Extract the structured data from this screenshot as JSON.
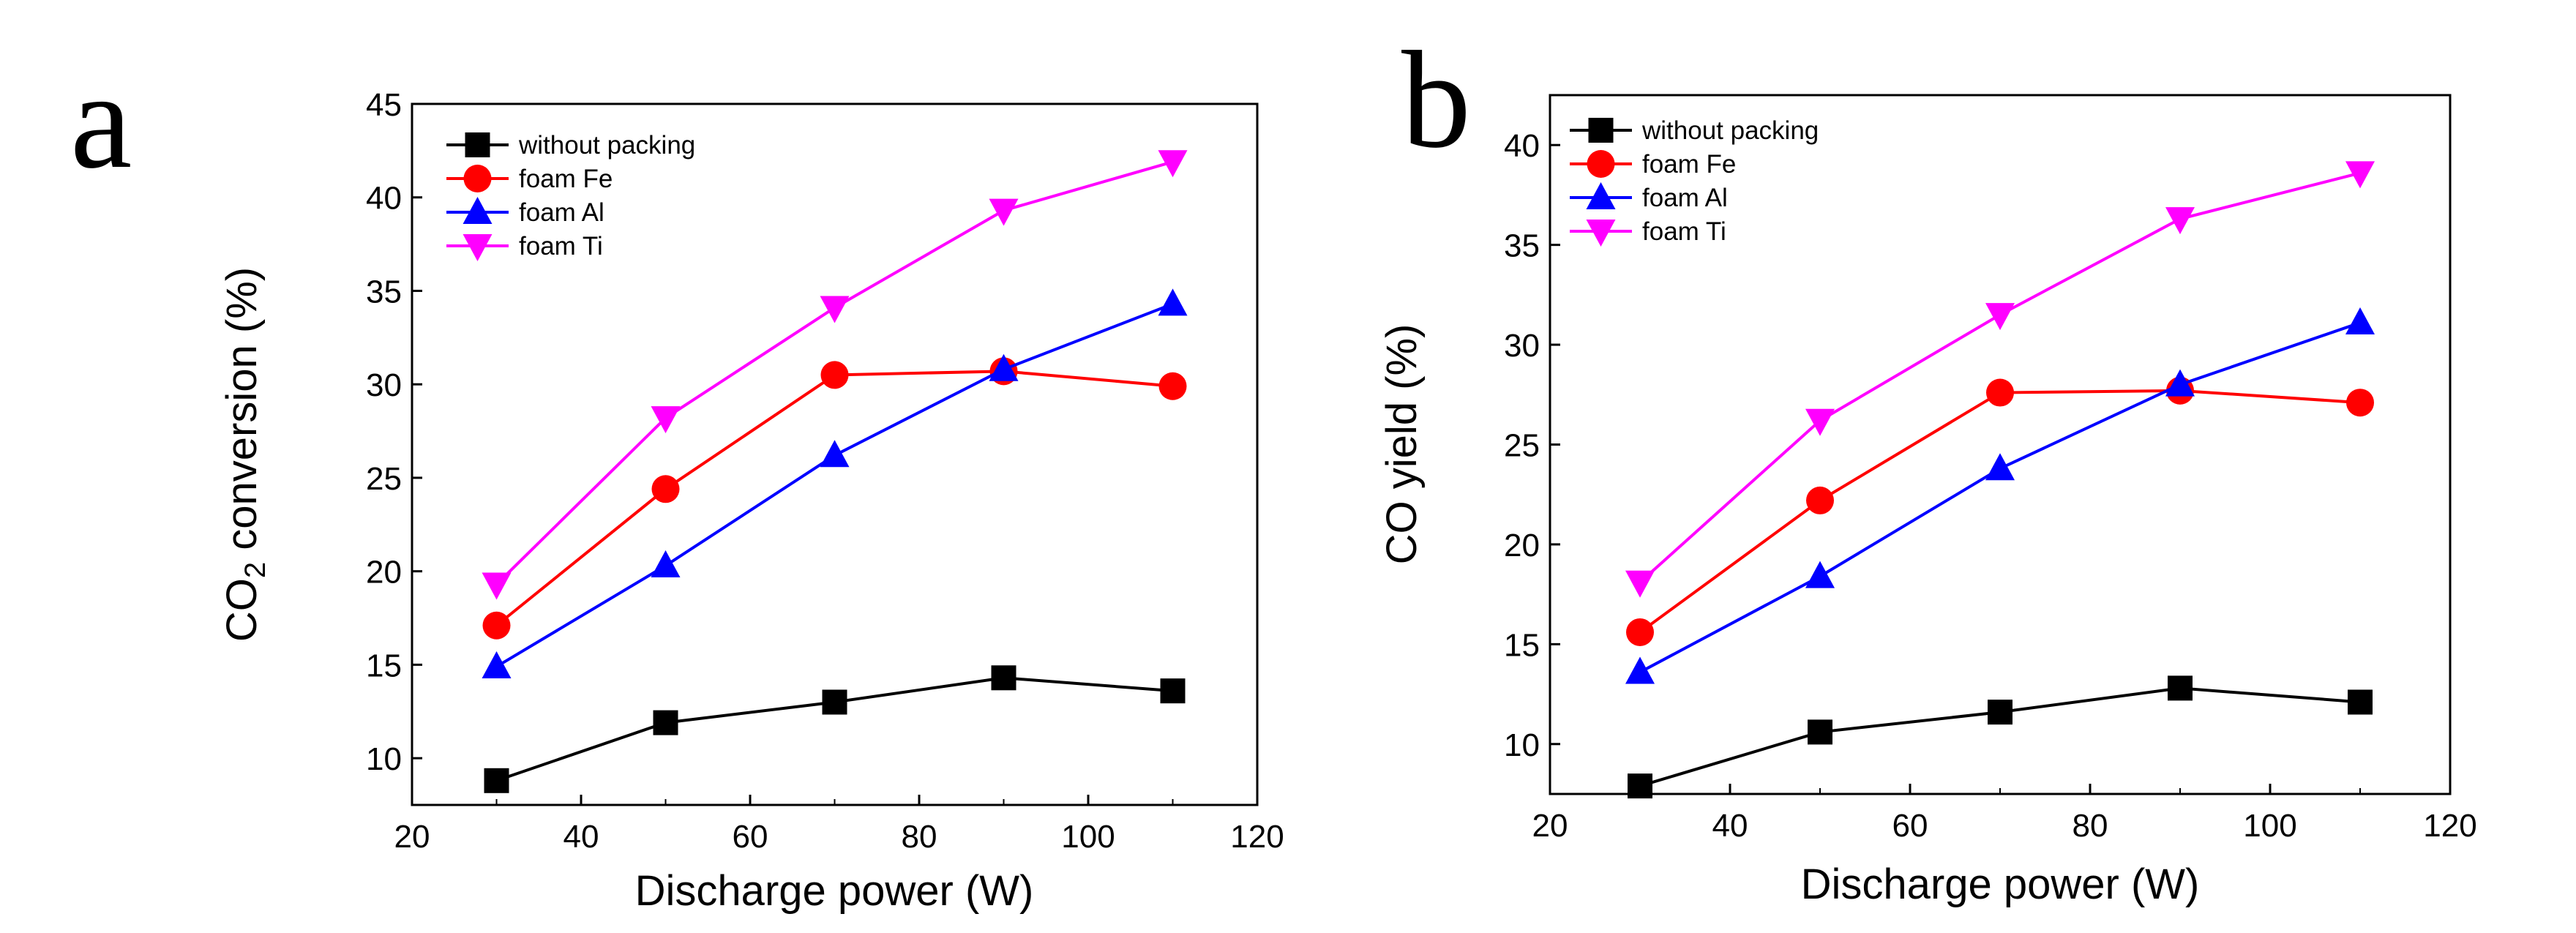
{
  "chart_data": [
    {
      "type": "line",
      "panel_label": "a",
      "title": "",
      "xlabel": "Discharge power (W)",
      "ylabel_parts": [
        "CO",
        "2",
        " conversion (%)"
      ],
      "xlim": [
        20,
        120
      ],
      "ylim": [
        7.5,
        45
      ],
      "xticks": [
        20,
        40,
        60,
        80,
        100,
        120
      ],
      "yticks": [
        10,
        15,
        20,
        25,
        30,
        35,
        40,
        45
      ],
      "grid": false,
      "legend_position": "top-left",
      "x": [
        30,
        50,
        70,
        90,
        110
      ],
      "series": [
        {
          "name": "without packing",
          "color": "#000000",
          "marker": "square",
          "values": [
            8.8,
            11.9,
            13.0,
            14.3,
            13.6
          ]
        },
        {
          "name": "foam Fe",
          "color": "#ff0000",
          "marker": "circle",
          "values": [
            17.1,
            24.4,
            30.5,
            30.7,
            29.9
          ]
        },
        {
          "name": "foam Al",
          "color": "#0000ff",
          "marker": "triangle-up",
          "values": [
            14.9,
            20.3,
            26.2,
            30.8,
            34.3
          ]
        },
        {
          "name": "foam Ti",
          "color": "#ff00ff",
          "marker": "triangle-down",
          "values": [
            19.3,
            28.2,
            34.1,
            39.3,
            41.9
          ]
        }
      ]
    },
    {
      "type": "line",
      "panel_label": "b",
      "title": "",
      "xlabel": "Discharge power (W)",
      "ylabel_parts": [
        "CO yield (%)"
      ],
      "xlim": [
        20,
        120
      ],
      "ylim": [
        7.5,
        42.5
      ],
      "xticks": [
        20,
        40,
        60,
        80,
        100,
        120
      ],
      "yticks": [
        10,
        15,
        20,
        25,
        30,
        35,
        40
      ],
      "grid": false,
      "legend_position": "top-left",
      "x": [
        30,
        50,
        70,
        90,
        110
      ],
      "series": [
        {
          "name": "without packing",
          "color": "#000000",
          "marker": "square",
          "values": [
            7.9,
            10.6,
            11.6,
            12.8,
            12.1
          ]
        },
        {
          "name": "foam Fe",
          "color": "#ff0000",
          "marker": "circle",
          "values": [
            15.6,
            22.2,
            27.6,
            27.7,
            27.1
          ]
        },
        {
          "name": "foam Al",
          "color": "#0000ff",
          "marker": "triangle-up",
          "values": [
            13.6,
            18.4,
            23.8,
            28.0,
            31.1
          ]
        },
        {
          "name": "foam Ti",
          "color": "#ff00ff",
          "marker": "triangle-down",
          "values": [
            18.1,
            26.2,
            31.5,
            36.3,
            38.6
          ]
        }
      ]
    }
  ]
}
